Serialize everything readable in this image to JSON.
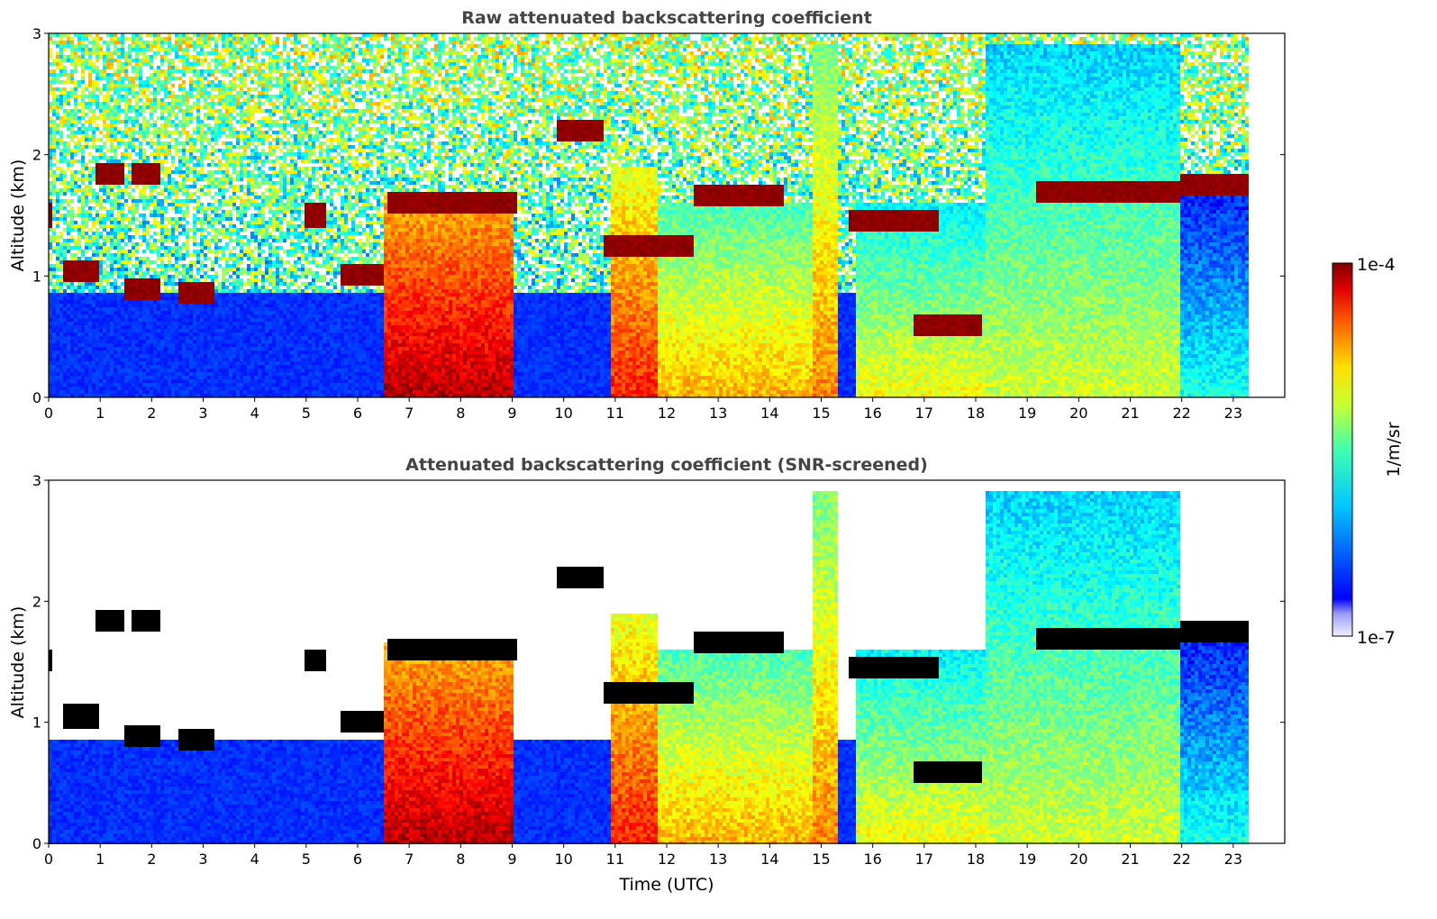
{
  "chart_data": [
    {
      "type": "heatmap",
      "title": "Raw attenuated backscattering coefficient",
      "xlabel": "",
      "ylabel": "Altitude (km)",
      "xlim": [
        0,
        24
      ],
      "ylim": [
        0,
        3
      ],
      "xticks": [
        "0",
        "1",
        "2",
        "3",
        "4",
        "5",
        "6",
        "7",
        "8",
        "9",
        "10",
        "11",
        "12",
        "13",
        "14",
        "15",
        "16",
        "17",
        "18",
        "19",
        "20",
        "21",
        "22",
        "23"
      ],
      "yticks": [
        "0",
        "1",
        "2",
        "3"
      ],
      "data_end_hour": 23.3,
      "noise_base_km": 0.4,
      "screened": false,
      "cloud_layers": [
        {
          "t_start": 0.0,
          "t_end": 0.1,
          "altitude_km": 1.5
        },
        {
          "t_start": 0.3,
          "t_end": 1.0,
          "altitude_km": 1.05
        },
        {
          "t_start": 0.9,
          "t_end": 1.5,
          "altitude_km": 1.85
        },
        {
          "t_start": 1.5,
          "t_end": 2.2,
          "altitude_km": 0.88
        },
        {
          "t_start": 1.6,
          "t_end": 2.2,
          "altitude_km": 1.85
        },
        {
          "t_start": 2.5,
          "t_end": 3.2,
          "altitude_km": 0.85
        },
        {
          "t_start": 5.0,
          "t_end": 5.4,
          "altitude_km": 1.5
        },
        {
          "t_start": 5.7,
          "t_end": 6.5,
          "altitude_km": 1.0
        },
        {
          "t_start": 6.6,
          "t_end": 9.1,
          "altitude_km": 1.6
        },
        {
          "t_start": 9.9,
          "t_end": 10.8,
          "altitude_km": 2.2
        },
        {
          "t_start": 10.8,
          "t_end": 12.5,
          "altitude_km": 1.25
        },
        {
          "t_start": 12.5,
          "t_end": 14.3,
          "altitude_km": 1.65
        },
        {
          "t_start": 15.5,
          "t_end": 17.3,
          "altitude_km": 1.45
        },
        {
          "t_start": 16.8,
          "t_end": 18.1,
          "altitude_km": 0.6
        },
        {
          "t_start": 19.2,
          "t_end": 22.0,
          "altitude_km": 1.7
        },
        {
          "t_start": 22.0,
          "t_end": 23.3,
          "altitude_km": 1.75
        }
      ],
      "aerosol_columns": [
        {
          "t_start": 6.5,
          "t_end": 9.0,
          "top_km": 1.65,
          "intensity": 0.95
        },
        {
          "t_start": 10.9,
          "t_end": 11.8,
          "top_km": 1.9,
          "intensity": 0.85
        },
        {
          "t_start": 11.8,
          "t_end": 14.8,
          "top_km": 1.6,
          "intensity": 0.7
        },
        {
          "t_start": 14.8,
          "t_end": 15.3,
          "top_km": 2.9,
          "intensity": 0.75
        },
        {
          "t_start": 15.7,
          "t_end": 18.2,
          "top_km": 1.6,
          "intensity": 0.62
        },
        {
          "t_start": 18.2,
          "t_end": 22.0,
          "top_km": 2.9,
          "intensity": 0.58
        },
        {
          "t_start": 22.0,
          "t_end": 23.3,
          "top_km": 1.7,
          "intensity": 0.4
        }
      ]
    },
    {
      "type": "heatmap",
      "title": "Attenuated backscattering coefficient (SNR-screened)",
      "xlabel": "Time (UTC)",
      "ylabel": "Altitude (km)",
      "xlim": [
        0,
        24
      ],
      "ylim": [
        0,
        3
      ],
      "xticks": [
        "0",
        "1",
        "2",
        "3",
        "4",
        "5",
        "6",
        "7",
        "8",
        "9",
        "10",
        "11",
        "12",
        "13",
        "14",
        "15",
        "16",
        "17",
        "18",
        "19",
        "20",
        "21",
        "22",
        "23"
      ],
      "yticks": [
        "0",
        "1",
        "2",
        "3"
      ],
      "data_end_hour": 23.3,
      "screened": true
    }
  ],
  "colorbar": {
    "label": "1/m/sr",
    "max_label": "1e-4",
    "min_label": "1e-7",
    "colormap": "jet",
    "scale": "log",
    "range": [
      1e-07,
      0.0001
    ]
  }
}
